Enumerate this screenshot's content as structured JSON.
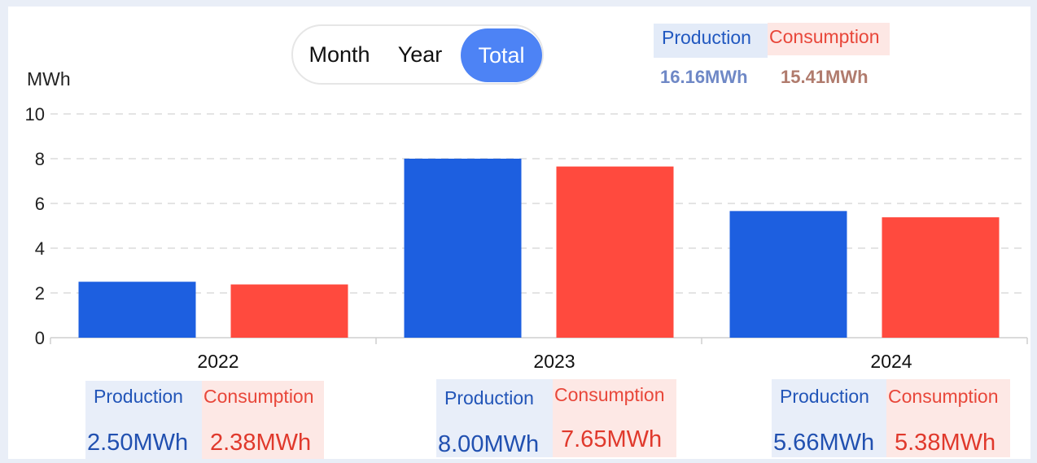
{
  "tabs": {
    "month": "Month",
    "year": "Year",
    "total": "Total",
    "selected": "Total"
  },
  "totals": {
    "production_label": "Production",
    "consumption_label": "Consumption",
    "production_value": "16.16MWh",
    "consumption_value": "15.41MWh"
  },
  "colors": {
    "production": "#1d5fe0",
    "consumption": "#ff4a3e",
    "accent": "#4d83f5"
  },
  "chart_data": {
    "type": "bar",
    "ylabel": "MWh",
    "ylim": [
      0,
      10
    ],
    "yticks": [
      0,
      2,
      4,
      6,
      8,
      10
    ],
    "grid": "dashed horizontal",
    "categories": [
      "2022",
      "2023",
      "2024"
    ],
    "series": [
      {
        "name": "Production",
        "values": [
          2.5,
          8.0,
          5.66
        ]
      },
      {
        "name": "Consumption",
        "values": [
          2.38,
          7.65,
          5.38
        ]
      }
    ]
  },
  "year_summaries": [
    {
      "production_label": "Production",
      "consumption_label": "Consumption",
      "production_value": "2.50MWh",
      "consumption_value": "2.38MWh"
    },
    {
      "production_label": "Production",
      "consumption_label": "Consumption",
      "production_value": "8.00MWh",
      "consumption_value": "7.65MWh"
    },
    {
      "production_label": "Production",
      "consumption_label": "Consumption",
      "production_value": "5.66MWh",
      "consumption_value": "5.38MWh"
    }
  ]
}
